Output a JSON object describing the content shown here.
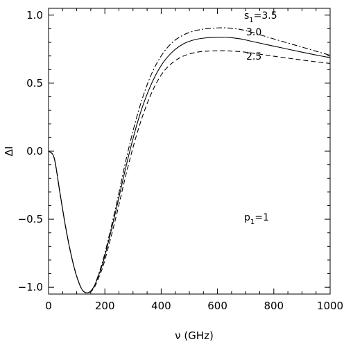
{
  "chart_data": {
    "type": "line",
    "xlabel": "ν (GHz)",
    "ylabel": "ΔI",
    "xlim": [
      0,
      1000
    ],
    "ylim": [
      -1.05,
      1.05
    ],
    "x_ticks": [
      {
        "value": 0,
        "label": "0"
      },
      {
        "value": 200,
        "label": "200"
      },
      {
        "value": 400,
        "label": "400"
      },
      {
        "value": 600,
        "label": "600"
      },
      {
        "value": 800,
        "label": "800"
      },
      {
        "value": 1000,
        "label": "1000"
      }
    ],
    "y_ticks": [
      {
        "value": -1.0,
        "label": "−1.0"
      },
      {
        "value": -0.5,
        "label": "−0.5"
      },
      {
        "value": 0.0,
        "label": "0.0"
      },
      {
        "value": 0.5,
        "label": "0.5"
      },
      {
        "value": 1.0,
        "label": "1.0"
      }
    ],
    "grid": false,
    "series": [
      {
        "style": "dash-dot",
        "x": [
          0,
          20,
          40,
          60,
          80,
          100,
          120,
          140,
          160,
          180,
          200,
          240,
          280,
          320,
          360,
          400,
          440,
          480,
          520,
          560,
          600,
          620,
          640,
          680,
          720,
          760,
          800,
          850,
          900,
          950,
          1000
        ],
        "y": [
          0.0,
          -0.05,
          -0.3,
          -0.55,
          -0.76,
          -0.92,
          -1.02,
          -1.04,
          -1.0,
          -0.89,
          -0.75,
          -0.4,
          -0.02,
          0.3,
          0.54,
          0.7,
          0.8,
          0.855,
          0.885,
          0.9,
          0.906,
          0.907,
          0.905,
          0.895,
          0.875,
          0.85,
          0.825,
          0.795,
          0.765,
          0.735,
          0.705
        ]
      },
      {
        "style": "solid",
        "x": [
          0,
          20,
          40,
          60,
          80,
          100,
          120,
          140,
          160,
          180,
          200,
          240,
          280,
          320,
          360,
          400,
          440,
          480,
          520,
          560,
          600,
          620,
          640,
          680,
          720,
          760,
          800,
          850,
          900,
          950,
          1000
        ],
        "y": [
          0.0,
          -0.05,
          -0.3,
          -0.55,
          -0.76,
          -0.92,
          -1.02,
          -1.04,
          -1.0,
          -0.9,
          -0.77,
          -0.43,
          -0.07,
          0.24,
          0.47,
          0.63,
          0.73,
          0.79,
          0.82,
          0.833,
          0.838,
          0.838,
          0.836,
          0.826,
          0.808,
          0.79,
          0.772,
          0.75,
          0.728,
          0.707,
          0.687
        ]
      },
      {
        "style": "dashed",
        "x": [
          0,
          20,
          40,
          60,
          80,
          100,
          120,
          140,
          160,
          180,
          200,
          240,
          280,
          320,
          360,
          400,
          440,
          480,
          520,
          560,
          600,
          620,
          640,
          680,
          720,
          760,
          800,
          850,
          900,
          950,
          1000
        ],
        "y": [
          0.0,
          -0.05,
          -0.3,
          -0.55,
          -0.76,
          -0.92,
          -1.02,
          -1.04,
          -1.01,
          -0.92,
          -0.8,
          -0.48,
          -0.13,
          0.17,
          0.4,
          0.56,
          0.65,
          0.7,
          0.725,
          0.735,
          0.738,
          0.738,
          0.737,
          0.732,
          0.722,
          0.71,
          0.698,
          0.684,
          0.67,
          0.657,
          0.645
        ]
      }
    ],
    "annotations": {
      "s1_prefix": "s",
      "s1_subscript": "1",
      "s1_value": "=3.5",
      "mid_label": "3.0",
      "low_label": "2.5",
      "p1_prefix": "p",
      "p1_subscript": "1",
      "p1_value": "=1"
    }
  }
}
